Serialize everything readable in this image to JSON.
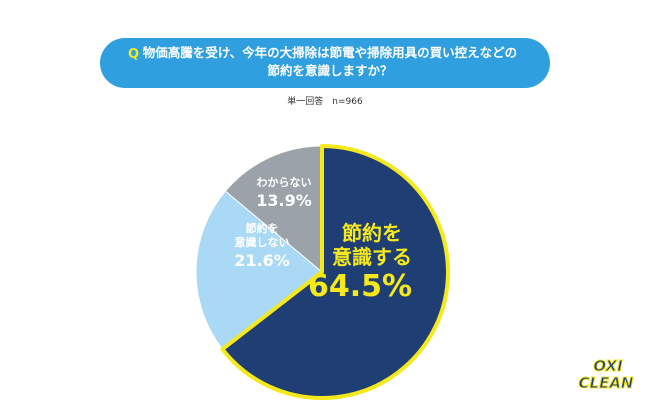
{
  "header": {
    "mark": "Q",
    "title": "物価高騰を受け、今年の大掃除は節電や掃除用具の買い控えなどの\n節約を意識しますか？",
    "note": "単一回答　n=966"
  },
  "logo": {
    "line1": "OXI",
    "line2": "CLEAN"
  },
  "chart_data": {
    "type": "pie",
    "categories": [
      "節約を\n意識する",
      "節約を\n意識しない",
      "わからない"
    ],
    "values": [
      64.5,
      21.6,
      13.9
    ],
    "value_labels": [
      "64.5%",
      "21.6%",
      "13.9%"
    ],
    "colors": [
      "#1f3e74",
      "#a9d9f5",
      "#9ba2a9"
    ]
  }
}
